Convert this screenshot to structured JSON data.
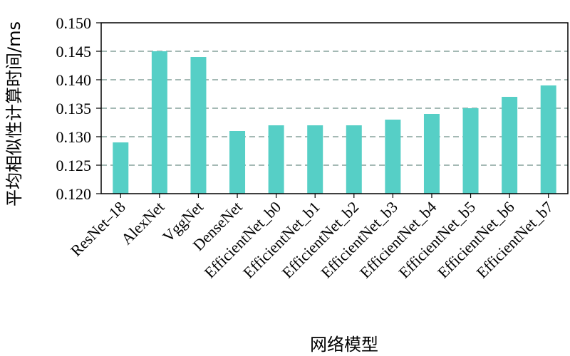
{
  "chart_data": {
    "type": "bar",
    "title": "",
    "xlabel": "网络模型",
    "ylabel": "平均相似性计算时间/ms",
    "ylim": [
      0.12,
      0.15
    ],
    "yticks": [
      "0.120",
      "0.125",
      "0.130",
      "0.135",
      "0.140",
      "0.145",
      "0.150"
    ],
    "grid": "horizontal dashed",
    "bar_color": "#56CFC6",
    "categories": [
      "ResNet–18",
      "AlexNet",
      "VggNet",
      "DenseNet",
      "EfficientNet_b0",
      "EfficientNet_b1",
      "EfficientNet_b2",
      "EfficientNet_b3",
      "EfficientNet_b4",
      "EfficientNet_b5",
      "EfficientNet_b6",
      "EfficientNet_b7"
    ],
    "values": [
      0.129,
      0.145,
      0.144,
      0.131,
      0.132,
      0.132,
      0.132,
      0.133,
      0.134,
      0.135,
      0.137,
      0.139
    ]
  }
}
